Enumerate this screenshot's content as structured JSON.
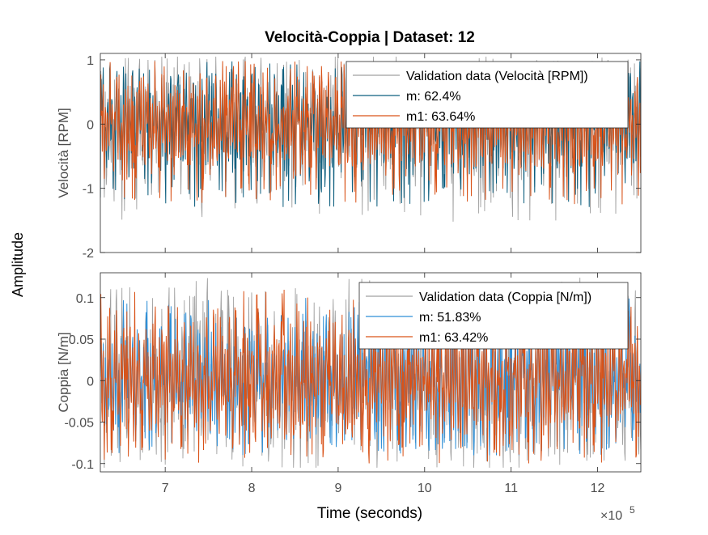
{
  "figure_title": "Velocità-Coppia | Dataset: 12",
  "ylabel_common": "Amplitude",
  "xlabel": "Time (seconds)",
  "x_exponent_base": "×10",
  "x_exponent_power": "5",
  "colors": {
    "validation": "#a0a0a0",
    "m_top": "#0e5f7f",
    "m_bottom": "#2f8fd6",
    "m1": "#d95319",
    "axis": "#262626",
    "tick_text": "#4d4d4d"
  },
  "chart_data": {
    "type": "line",
    "x_scale_multiplier": 100000,
    "xlim": [
      6.25,
      12.5
    ],
    "x_ticks": [
      7,
      8,
      9,
      10,
      11,
      12
    ],
    "panels": [
      {
        "ylabel": "Velocità [RPM]",
        "ylim": [
          -2,
          1.1
        ],
        "y_ticks": [
          1,
          0,
          -1,
          -2
        ],
        "y_tick_labels": [
          "1",
          "0",
          "-1",
          "-2"
        ],
        "legend_position": "top-right",
        "series": [
          {
            "name": "Validation data (Velocità [RPM])",
            "key": "validation",
            "amplitude": 0.95,
            "min": -1.52,
            "max": 1.05
          },
          {
            "name": "m: 62.4%",
            "key": "m",
            "amplitude": 0.85,
            "min": -1.3,
            "max": 0.98
          },
          {
            "name": "m1: 63.64%",
            "key": "m1",
            "amplitude": 0.85,
            "min": -1.25,
            "max": 0.98
          }
        ]
      },
      {
        "ylabel": "Coppia [N/m]",
        "ylim": [
          -0.11,
          0.13
        ],
        "y_ticks": [
          0.1,
          0.05,
          0,
          -0.05,
          -0.1
        ],
        "y_tick_labels": [
          "0.1",
          "0.05",
          "0",
          "-0.05",
          "-0.1"
        ],
        "legend_position": "top-right",
        "series": [
          {
            "name": "Validation data (Coppia [N/m])",
            "key": "validation",
            "amplitude": 0.09,
            "min": -0.105,
            "max": 0.125
          },
          {
            "name": "m: 51.83%",
            "key": "m",
            "amplitude": 0.075,
            "min": -0.09,
            "max": 0.1
          },
          {
            "name": "m1: 63.42%",
            "key": "m1",
            "amplitude": 0.075,
            "min": -0.1,
            "max": 0.11
          }
        ]
      }
    ]
  }
}
